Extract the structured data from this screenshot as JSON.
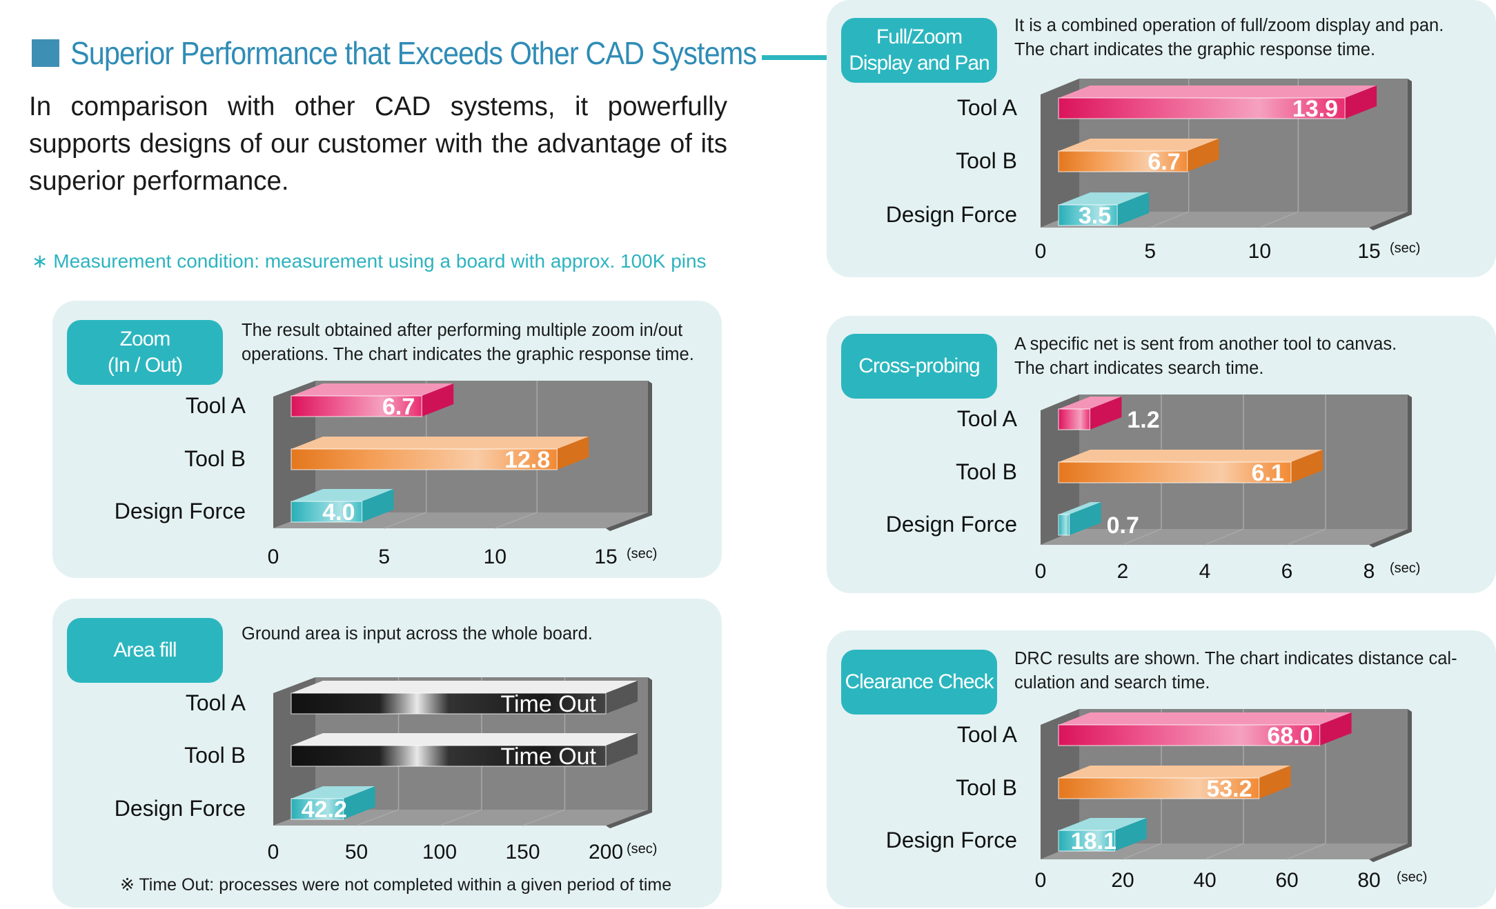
{
  "heading": "Superior Performance that Exceeds Other CAD Systems",
  "intro": "In comparison with other CAD systems, it powerfully supports designs of our customer with the advantage of its superior performance.",
  "note": "∗ Measurement condition: measurement using a board with approx. 100K pins",
  "colors": {
    "accent": "#2bb6bf",
    "panel_bg": "#e3f1f2",
    "tool_a": "#e6145f",
    "tool_b": "#f07d1e",
    "design_force": "#2bb6bf",
    "time_out": "#111111",
    "chart_bg": "#7d7d7d"
  },
  "panels": {
    "zoom": {
      "badge": [
        "Zoom",
        "(In / Out)"
      ],
      "desc": [
        "The result obtained after performing multiple zoom in/out",
        "operations.  The chart indicates the graphic response time."
      ]
    },
    "area_fill": {
      "badge": [
        "Area fill"
      ],
      "desc": [
        "Ground area is input across the whole board."
      ],
      "footnote": "※ Time Out: processes were not completed within a given period of time"
    },
    "full_zoom": {
      "badge": [
        "Full/Zoom",
        "Display and Pan"
      ],
      "desc": [
        "It is a combined operation of full/zoom display and pan.",
        "The chart indicates the graphic response time."
      ]
    },
    "cross_probing": {
      "badge": [
        "Cross-probing"
      ],
      "desc": [
        "A specific net is sent from another tool to canvas.",
        "The chart indicates search time."
      ]
    },
    "clearance": {
      "badge": [
        "Clearance Check"
      ],
      "desc": [
        "DRC results are shown.  The chart indicates distance cal-",
        "culation and search time."
      ]
    }
  },
  "chart_data": [
    {
      "id": "zoom",
      "type": "bar",
      "categories": [
        "Tool A",
        "Tool B",
        "Design Force"
      ],
      "values": [
        6.7,
        12.8,
        4.0
      ],
      "value_labels": [
        "6.7",
        "12.8",
        "4.0"
      ],
      "label_pos": [
        "inside",
        "inside",
        "inside"
      ],
      "xlim": [
        0,
        15
      ],
      "ticks": [
        "0",
        "5",
        "10",
        "15"
      ],
      "unit": "(sec)"
    },
    {
      "id": "area_fill",
      "type": "bar",
      "categories": [
        "Tool A",
        "Tool B",
        "Design Force"
      ],
      "values": [
        null,
        null,
        42.2
      ],
      "value_labels": [
        "Time Out",
        "Time Out",
        "42.2"
      ],
      "label_pos": [
        "inside",
        "inside",
        "inside"
      ],
      "xlim": [
        0,
        200
      ],
      "ticks": [
        "0",
        "50",
        "100",
        "150",
        "200"
      ],
      "unit": "(sec)"
    },
    {
      "id": "full_zoom",
      "type": "bar",
      "categories": [
        "Tool A",
        "Tool B",
        "Design Force"
      ],
      "values": [
        13.9,
        6.7,
        3.5
      ],
      "value_labels": [
        "13.9",
        "6.7",
        "3.5"
      ],
      "label_pos": [
        "inside",
        "inside",
        "inside"
      ],
      "xlim": [
        0,
        15
      ],
      "ticks": [
        "0",
        "5",
        "10",
        "15"
      ],
      "unit": "(sec)"
    },
    {
      "id": "cross_probing",
      "type": "bar",
      "categories": [
        "Tool A",
        "Tool B",
        "Design Force"
      ],
      "values": [
        1.2,
        6.1,
        0.7
      ],
      "value_labels": [
        "1.2",
        "6.1",
        "0.7"
      ],
      "label_pos": [
        "outside",
        "inside",
        "outside"
      ],
      "xlim": [
        0,
        8
      ],
      "ticks": [
        "0",
        "2",
        "4",
        "6",
        "8"
      ],
      "unit": "(sec)"
    },
    {
      "id": "clearance",
      "type": "bar",
      "categories": [
        "Tool A",
        "Tool B",
        "Design Force"
      ],
      "values": [
        68.0,
        53.2,
        18.1
      ],
      "value_labels": [
        "68.0",
        "53.2",
        "18.1"
      ],
      "label_pos": [
        "inside",
        "inside",
        "inside"
      ],
      "xlim": [
        0,
        80
      ],
      "ticks": [
        "0",
        "20",
        "40",
        "60",
        "80"
      ],
      "unit": "(sec)"
    }
  ]
}
